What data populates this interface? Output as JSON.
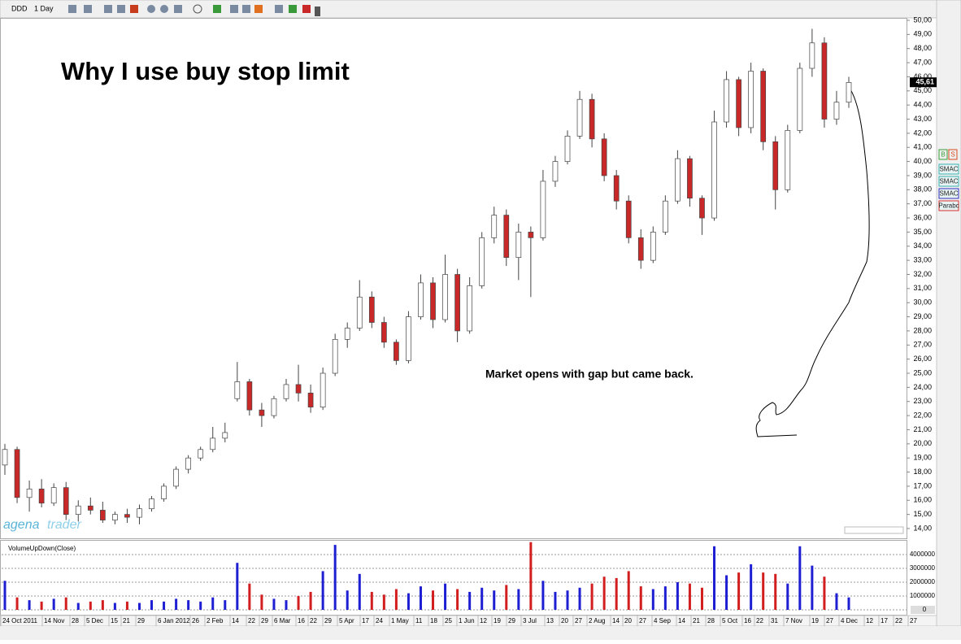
{
  "toolbar": {
    "symbol": "DDD",
    "timeframe": "1 Day"
  },
  "branding": {
    "left": "agena",
    "right": "trader"
  },
  "side_panel": [
    "B",
    "S",
    "SMAC",
    "SMAC",
    "SMAC",
    "Parabc"
  ],
  "chart_data": [
    {
      "type": "candlestick",
      "title": "Why I use buy stop limit",
      "annotation": "Market opens with gap but came back.",
      "up_color": "#ffffff",
      "down_color": "#c82828",
      "ohlc": [
        [
          18.5,
          20.0,
          17.8,
          19.6
        ],
        [
          19.6,
          19.8,
          15.8,
          16.2
        ],
        [
          16.2,
          17.4,
          15.2,
          16.8
        ],
        [
          16.8,
          17.5,
          15.5,
          15.8
        ],
        [
          15.8,
          17.2,
          15.6,
          16.9
        ],
        [
          16.9,
          17.3,
          14.6,
          15.0
        ],
        [
          15.0,
          16.0,
          14.5,
          15.6
        ],
        [
          15.6,
          16.2,
          15.0,
          15.3
        ],
        [
          15.3,
          15.9,
          14.4,
          14.6
        ],
        [
          14.6,
          15.2,
          14.3,
          15.0
        ],
        [
          15.0,
          15.4,
          14.4,
          14.8
        ],
        [
          14.8,
          15.7,
          14.3,
          15.4
        ],
        [
          15.4,
          16.3,
          15.2,
          16.1
        ],
        [
          16.1,
          17.2,
          15.9,
          17.0
        ],
        [
          17.0,
          18.4,
          16.8,
          18.2
        ],
        [
          18.2,
          19.2,
          17.9,
          19.0
        ],
        [
          19.0,
          19.8,
          18.8,
          19.6
        ],
        [
          19.6,
          21.2,
          19.4,
          20.4
        ],
        [
          20.4,
          21.5,
          20.1,
          20.8
        ],
        [
          23.2,
          25.8,
          23.0,
          24.4
        ],
        [
          24.4,
          24.6,
          22.0,
          22.4
        ],
        [
          22.4,
          22.9,
          21.2,
          22.0
        ],
        [
          22.0,
          23.4,
          21.8,
          23.2
        ],
        [
          23.2,
          24.6,
          23.0,
          24.2
        ],
        [
          24.2,
          25.6,
          23.0,
          23.6
        ],
        [
          23.6,
          24.2,
          22.2,
          22.6
        ],
        [
          22.6,
          25.4,
          22.4,
          25.0
        ],
        [
          25.0,
          27.8,
          24.8,
          27.4
        ],
        [
          27.4,
          28.6,
          26.8,
          28.2
        ],
        [
          28.2,
          31.6,
          28.0,
          30.4
        ],
        [
          30.4,
          30.8,
          28.2,
          28.6
        ],
        [
          28.6,
          29.0,
          26.8,
          27.2
        ],
        [
          27.2,
          27.4,
          25.6,
          25.9
        ],
        [
          25.9,
          29.4,
          25.7,
          29.0
        ],
        [
          29.0,
          32.0,
          28.8,
          31.4
        ],
        [
          31.4,
          31.8,
          28.2,
          28.8
        ],
        [
          28.8,
          33.4,
          28.6,
          32.0
        ],
        [
          32.0,
          32.4,
          27.2,
          28.0
        ],
        [
          28.0,
          31.8,
          27.8,
          31.2
        ],
        [
          31.2,
          35.0,
          31.0,
          34.6
        ],
        [
          34.6,
          36.8,
          34.2,
          36.2
        ],
        [
          36.2,
          36.6,
          32.6,
          33.2
        ],
        [
          33.2,
          35.6,
          31.6,
          35.0
        ],
        [
          35.0,
          35.4,
          30.4,
          34.6
        ],
        [
          34.6,
          39.4,
          34.4,
          38.6
        ],
        [
          38.6,
          40.4,
          38.2,
          40.0
        ],
        [
          40.0,
          42.2,
          39.8,
          41.8
        ],
        [
          41.8,
          45.0,
          41.6,
          44.4
        ],
        [
          44.4,
          44.8,
          41.0,
          41.6
        ],
        [
          41.6,
          42.0,
          38.6,
          39.0
        ],
        [
          39.0,
          39.4,
          36.6,
          37.2
        ],
        [
          37.2,
          37.6,
          34.2,
          34.6
        ],
        [
          34.6,
          35.2,
          32.4,
          33.0
        ],
        [
          33.0,
          35.4,
          32.8,
          35.0
        ],
        [
          35.0,
          37.6,
          34.8,
          37.2
        ],
        [
          37.2,
          40.8,
          37.0,
          40.2
        ],
        [
          40.2,
          40.4,
          36.8,
          37.4
        ],
        [
          37.4,
          37.6,
          34.8,
          36.0
        ],
        [
          36.0,
          43.6,
          35.8,
          42.8
        ],
        [
          42.8,
          46.4,
          42.4,
          45.8
        ],
        [
          45.8,
          46.0,
          41.8,
          42.4
        ],
        [
          42.4,
          47.0,
          42.0,
          46.4
        ],
        [
          46.4,
          46.6,
          40.8,
          41.4
        ],
        [
          41.4,
          41.8,
          36.6,
          38.0
        ],
        [
          38.0,
          42.6,
          37.8,
          42.2
        ],
        [
          42.2,
          47.0,
          42.0,
          46.6
        ],
        [
          46.6,
          49.4,
          46.0,
          48.4
        ],
        [
          48.4,
          48.8,
          42.4,
          43.0
        ],
        [
          43.0,
          45.0,
          42.6,
          44.2
        ],
        [
          44.2,
          46.0,
          43.8,
          45.6
        ]
      ],
      "last_price": {
        "value": 45.61,
        "label": "45,61"
      },
      "ylim": [
        13.6,
        50.6
      ],
      "yticks": [
        {
          "value": 14,
          "label": "14,00"
        },
        {
          "value": 15,
          "label": "15,00"
        },
        {
          "value": 16,
          "label": "16,00"
        },
        {
          "value": 17,
          "label": "17,00"
        },
        {
          "value": 18,
          "label": "18,00"
        },
        {
          "value": 19,
          "label": "19,00"
        },
        {
          "value": 20,
          "label": "20,00"
        },
        {
          "value": 21,
          "label": "21,00"
        },
        {
          "value": 22,
          "label": "22,00"
        },
        {
          "value": 23,
          "label": "23,00"
        },
        {
          "value": 24,
          "label": "24,00"
        },
        {
          "value": 25,
          "label": "25,00"
        },
        {
          "value": 26,
          "label": "26,00"
        },
        {
          "value": 27,
          "label": "27,00"
        },
        {
          "value": 28,
          "label": "28,00"
        },
        {
          "value": 29,
          "label": "29,00"
        },
        {
          "value": 30,
          "label": "30,00"
        },
        {
          "value": 31,
          "label": "31,00"
        },
        {
          "value": 32,
          "label": "32,00"
        },
        {
          "value": 33,
          "label": "33,00"
        },
        {
          "value": 34,
          "label": "34,00"
        },
        {
          "value": 35,
          "label": "35,00"
        },
        {
          "value": 36,
          "label": "36,00"
        },
        {
          "value": 37,
          "label": "37,00"
        },
        {
          "value": 38,
          "label": "38,00"
        },
        {
          "value": 39,
          "label": "39,00"
        },
        {
          "value": 40,
          "label": "40,00"
        },
        {
          "value": 41,
          "label": "41,00"
        },
        {
          "value": 42,
          "label": "42,00"
        },
        {
          "value": 43,
          "label": "43,00"
        },
        {
          "value": 44,
          "label": "44,00"
        },
        {
          "value": 45,
          "label": "45,00"
        },
        {
          "value": 46,
          "label": "46,00"
        },
        {
          "value": 47,
          "label": "47,00"
        },
        {
          "value": 48,
          "label": "48,00"
        },
        {
          "value": 49,
          "label": "49,00"
        },
        {
          "value": 50,
          "label": "50,00"
        }
      ],
      "date_labels": [
        "24 Oct 2011",
        "14 Nov",
        "28",
        "5 Dec",
        "15",
        "21",
        "29",
        "6 Jan 2012",
        "26",
        "2 Feb",
        "14",
        "22",
        "29",
        "6 Mar",
        "16",
        "22",
        "29",
        "5 Apr",
        "17",
        "24",
        "1 May",
        "11",
        "18",
        "25",
        "1 Jun",
        "12",
        "19",
        "29",
        "3 Jul",
        "13",
        "20",
        "27",
        "2 Aug",
        "14",
        "20",
        "27",
        "4 Sep",
        "14",
        "21",
        "28",
        "5 Oct",
        "16",
        "22",
        "31",
        "7 Nov",
        "19",
        "27",
        "4 Dec",
        "12",
        "17",
        "22",
        "27"
      ]
    },
    {
      "type": "bar",
      "title": "VolumeUpDown(Close)",
      "up_color": "#1e1ed2",
      "down_color": "#d21e1e",
      "values": [
        2100000,
        900000,
        700000,
        600000,
        800000,
        900000,
        500000,
        600000,
        700000,
        500000,
        600000,
        500000,
        700000,
        600000,
        800000,
        700000,
        600000,
        900000,
        700000,
        3400000,
        1900000,
        1100000,
        800000,
        700000,
        1000000,
        1300000,
        2800000,
        4700000,
        1400000,
        2600000,
        1300000,
        1100000,
        1500000,
        1200000,
        1700000,
        1400000,
        1900000,
        1500000,
        1300000,
        1600000,
        1400000,
        1800000,
        1500000,
        4900000,
        2100000,
        1300000,
        1400000,
        1600000,
        1900000,
        2400000,
        2300000,
        2800000,
        1700000,
        1500000,
        1700000,
        2000000,
        1900000,
        1600000,
        4600000,
        2500000,
        2700000,
        3300000,
        2700000,
        2600000,
        1900000,
        4600000,
        3200000,
        2400000,
        1200000,
        900000
      ],
      "ylim": [
        0,
        5000000
      ],
      "yticks": [
        0,
        1000000,
        2000000,
        3000000,
        4000000
      ]
    }
  ]
}
